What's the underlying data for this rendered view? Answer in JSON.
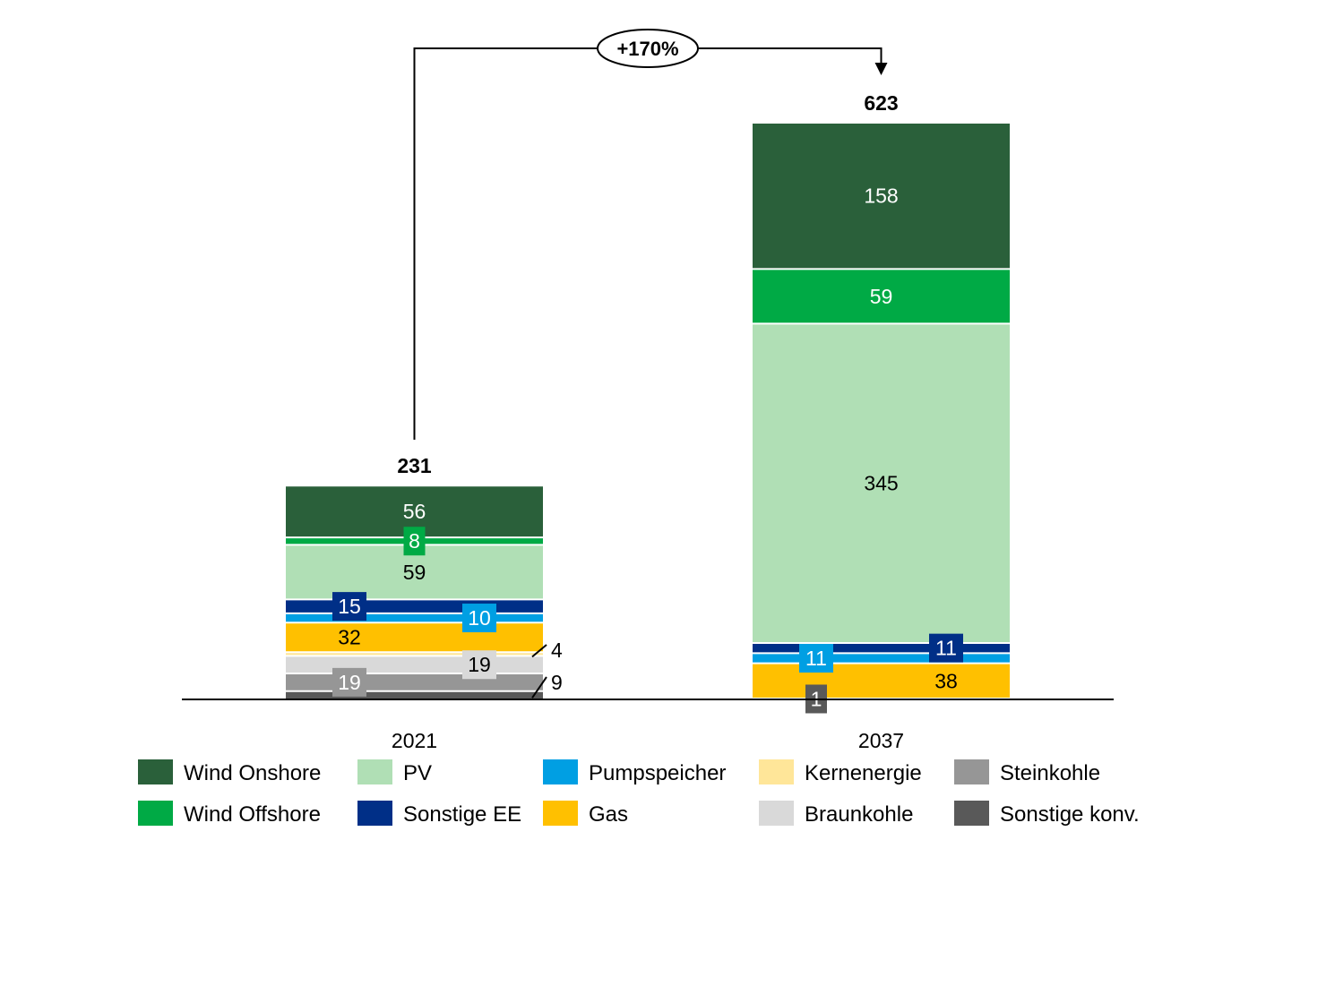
{
  "chart_data": {
    "type": "bar",
    "stacked": true,
    "categories": [
      "2021",
      "2037"
    ],
    "totals": [
      231,
      623
    ],
    "change_label": "+170%",
    "series": [
      {
        "name": "Sonstige konv.",
        "color": "#595959",
        "values": [
          9,
          1
        ]
      },
      {
        "name": "Steinkohle",
        "color": "#969696",
        "values": [
          19,
          0
        ]
      },
      {
        "name": "Braunkohle",
        "color": "#d9d9d9",
        "values": [
          19,
          0
        ]
      },
      {
        "name": "Kernenergie",
        "color": "#ffe699",
        "values": [
          4,
          0
        ]
      },
      {
        "name": "Gas",
        "color": "#ffc000",
        "values": [
          32,
          38
        ]
      },
      {
        "name": "Pumpspeicher",
        "color": "#009fe3",
        "values": [
          10,
          11
        ]
      },
      {
        "name": "Sonstige EE",
        "color": "#002f87",
        "values": [
          15,
          11
        ]
      },
      {
        "name": "PV",
        "color": "#b0dfb5",
        "values": [
          59,
          345
        ]
      },
      {
        "name": "Wind Offshore",
        "color": "#00aa45",
        "values": [
          8,
          59
        ]
      },
      {
        "name": "Wind Onshore",
        "color": "#2a603a",
        "values": [
          56,
          158
        ]
      }
    ],
    "legend_order": [
      "Wind Onshore",
      "PV",
      "Pumpspeicher",
      "Kernenergie",
      "Steinkohle",
      "Wind Offshore",
      "Sonstige EE",
      "Gas",
      "Braunkohle",
      "Sonstige konv."
    ],
    "legend_placement": "bottom",
    "grid": false,
    "ylim": [
      0,
      623
    ]
  }
}
